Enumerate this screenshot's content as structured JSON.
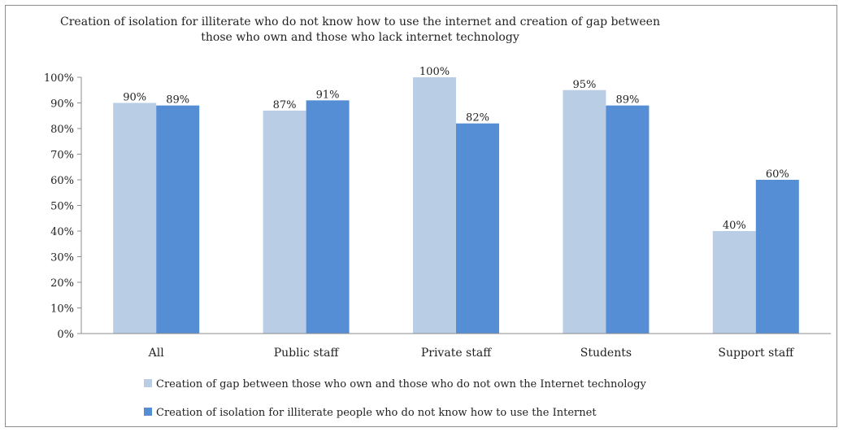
{
  "chart_data": {
    "type": "bar",
    "title_lines": [
      "Creation of isolation for illiterate who do not know how to use the internet and creation of gap between",
      "those who own and those who lack internet technology"
    ],
    "categories": [
      "All",
      "Public staff",
      "Private staff",
      "Students",
      "Support staff"
    ],
    "series": [
      {
        "name": "Creation of gap between those who own and those who do not own the Internet technology",
        "values": [
          90,
          87,
          100,
          95,
          40
        ],
        "labels": [
          "90%",
          "87%",
          "100%",
          "95%",
          "40%"
        ],
        "color": "#b9cde5"
      },
      {
        "name": "Creation of isolation for illiterate people who do not know how to use the Internet",
        "values": [
          89,
          91,
          82,
          89,
          60
        ],
        "labels": [
          "89%",
          "91%",
          "82%",
          "89%",
          "60%"
        ],
        "color": "#558ed5"
      }
    ],
    "yticks": [
      "0%",
      "10%",
      "20%",
      "30%",
      "40%",
      "50%",
      "60%",
      "70%",
      "80%",
      "90%",
      "100%"
    ],
    "ylim": [
      0,
      100
    ],
    "xlabel": "",
    "ylabel": "",
    "grid": false,
    "legend_position": "bottom"
  }
}
